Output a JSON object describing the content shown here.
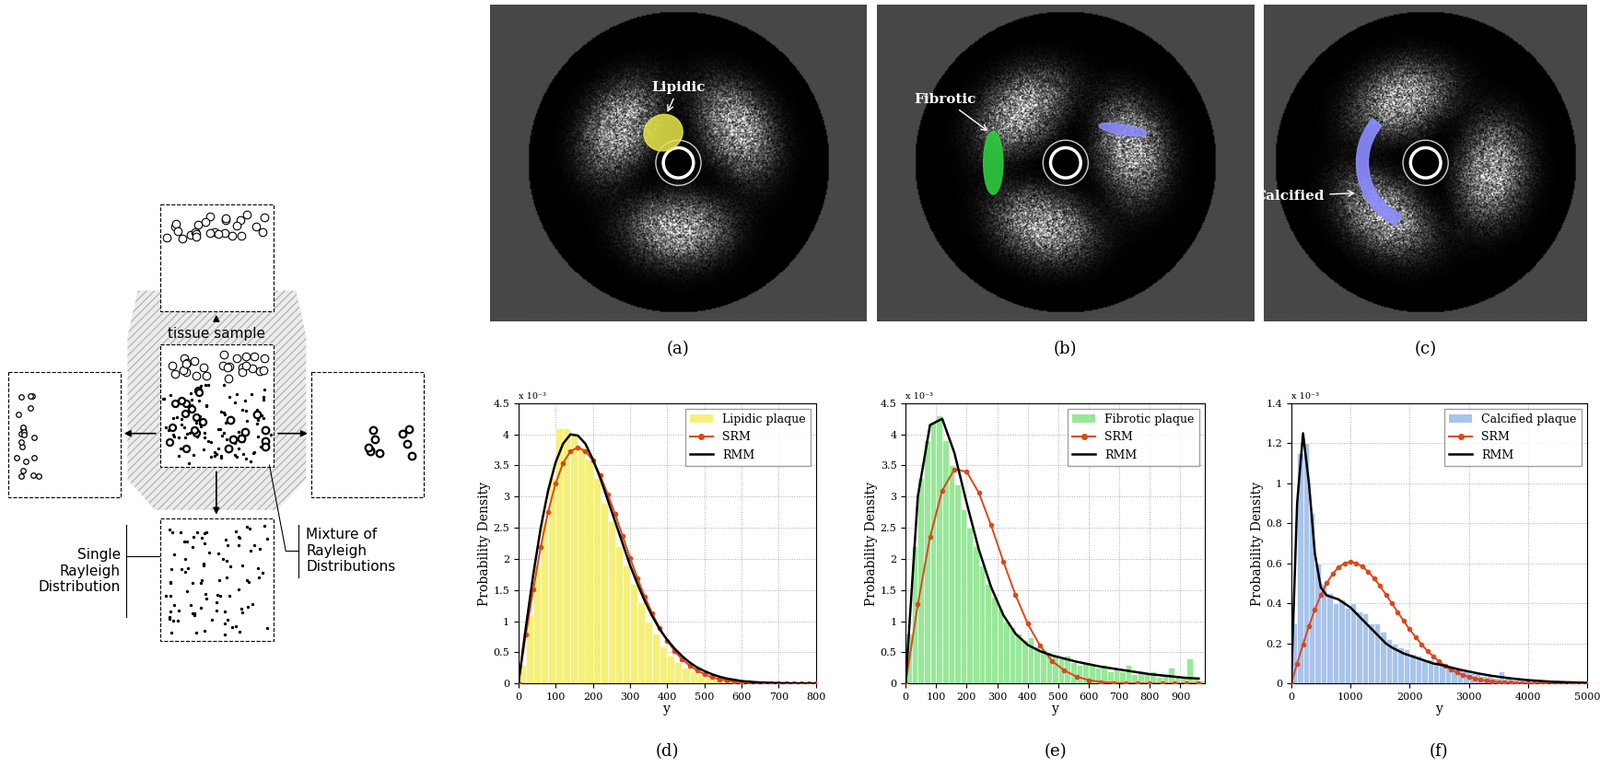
{
  "diagram": {
    "center_label": "tissue sample",
    "mixture_label": [
      "Mixture of",
      "Rayleigh",
      "Distributions"
    ],
    "single_label": [
      "Single",
      "Rayleigh",
      "Distribution"
    ]
  },
  "images": [
    {
      "panel_label": "(a)",
      "annotation": "Lipidic",
      "color": "#e8e84a"
    },
    {
      "panel_label": "(b)",
      "annotation": "Fibrotic",
      "color": "#2ecc40"
    },
    {
      "panel_label": "(c)",
      "annotation": "Calcified",
      "color": "#8c8cff"
    }
  ],
  "chart_data": [
    {
      "type": "histogram",
      "panel_label": "(d)",
      "xlabel": "y",
      "ylabel": "Probability Density",
      "y_multiplier": "x 10⁻³",
      "legend": "upper right",
      "grid": true,
      "xlim": [
        0,
        800
      ],
      "xticks": [
        0,
        100,
        200,
        300,
        400,
        500,
        600,
        700,
        800
      ],
      "ylim": [
        0,
        4.5
      ],
      "yticks": [
        0,
        0.5,
        1,
        1.5,
        2,
        2.5,
        3,
        3.5,
        4,
        4.5
      ],
      "histogram": {
        "name": "Lipidic plaque",
        "color": "#f5f07a",
        "bins": [
          0,
          20,
          40,
          60,
          80,
          100,
          120,
          140,
          160,
          180,
          200,
          220,
          240,
          260,
          280,
          300,
          320,
          340,
          360,
          380,
          400,
          420,
          440,
          460,
          480,
          500,
          520,
          540,
          560,
          580,
          600,
          620,
          640,
          660,
          680,
          700,
          720,
          740,
          760,
          780,
          800
        ],
        "counts": [
          0.3,
          1.1,
          1.9,
          2.6,
          3.3,
          4.1,
          4.1,
          4.0,
          3.8,
          3.6,
          3.3,
          2.9,
          2.6,
          2.2,
          1.9,
          1.6,
          1.3,
          1.0,
          0.8,
          0.6,
          0.45,
          0.35,
          0.25,
          0.2,
          0.15,
          0.1,
          0.08,
          0.1,
          0.05,
          0.03,
          0,
          0,
          0,
          0,
          0,
          0,
          0,
          0,
          0,
          0
        ]
      },
      "x": [
        0,
        20,
        40,
        60,
        80,
        100,
        120,
        140,
        160,
        180,
        200,
        220,
        240,
        260,
        280,
        300,
        320,
        340,
        360,
        380,
        400,
        420,
        440,
        460,
        480,
        500,
        520,
        540,
        560,
        580,
        600,
        620,
        640,
        660,
        680,
        700,
        720,
        740,
        760,
        780,
        800
      ],
      "series": [
        {
          "name": "SRM",
          "color": "#d9481c",
          "marker": "circle",
          "values": [
            0,
            0.78,
            1.51,
            2.19,
            2.76,
            3.21,
            3.54,
            3.73,
            3.79,
            3.73,
            3.58,
            3.34,
            3.04,
            2.72,
            2.37,
            2.02,
            1.69,
            1.39,
            1.12,
            0.89,
            0.69,
            0.52,
            0.39,
            0.29,
            0.21,
            0.15,
            0.1,
            0.07,
            0.05,
            0.03,
            0.02,
            0.013,
            0.008,
            0.005,
            0.003,
            0.002,
            0.001,
            0.001,
            0,
            0,
            0
          ]
        },
        {
          "name": "RMM",
          "color": "#000000",
          "values": [
            0,
            0.9,
            1.75,
            2.5,
            3.1,
            3.55,
            3.85,
            4.0,
            3.98,
            3.85,
            3.6,
            3.3,
            2.95,
            2.6,
            2.25,
            1.9,
            1.6,
            1.32,
            1.08,
            0.87,
            0.7,
            0.56,
            0.44,
            0.34,
            0.26,
            0.2,
            0.15,
            0.11,
            0.08,
            0.06,
            0.04,
            0.03,
            0.02,
            0.015,
            0.01,
            0.007,
            0.005,
            0.003,
            0.002,
            0.001,
            0
          ]
        }
      ]
    },
    {
      "type": "histogram",
      "panel_label": "(e)",
      "xlabel": "y",
      "ylabel": "Probability Density",
      "y_multiplier": "x 10⁻³",
      "legend": "upper right",
      "grid": true,
      "xlim": [
        0,
        980
      ],
      "xticks": [
        0,
        100,
        200,
        300,
        400,
        500,
        600,
        700,
        800,
        900
      ],
      "ylim": [
        0,
        4.5
      ],
      "yticks": [
        0,
        0.5,
        1,
        1.5,
        2,
        2.5,
        3,
        3.5,
        4,
        4.5
      ],
      "histogram": {
        "name": "Fibrotic plaque",
        "color": "#98e898",
        "bins": [
          0,
          20,
          40,
          60,
          80,
          100,
          120,
          140,
          160,
          180,
          200,
          220,
          240,
          260,
          280,
          300,
          320,
          340,
          360,
          380,
          400,
          420,
          440,
          460,
          480,
          500,
          520,
          540,
          560,
          580,
          600,
          620,
          640,
          660,
          680,
          700,
          720,
          740,
          760,
          780,
          800,
          820,
          840,
          860,
          880,
          900,
          920,
          940,
          960,
          980
        ],
        "counts": [
          0.8,
          2.2,
          3.3,
          3.9,
          4.2,
          4.3,
          3.9,
          3.5,
          3.2,
          2.8,
          2.5,
          2.2,
          1.9,
          1.6,
          1.4,
          1.2,
          1.0,
          0.9,
          0.8,
          0.7,
          0.75,
          0.6,
          0.55,
          0.5,
          0.45,
          0.4,
          0.45,
          0.35,
          0.3,
          0.35,
          0.3,
          0.25,
          0.3,
          0.2,
          0.25,
          0.2,
          0.3,
          0.15,
          0.2,
          0.15,
          0.2,
          0.1,
          0.15,
          0.25,
          0.1,
          0.1,
          0.4,
          0.1,
          0.05
        ]
      },
      "x": [
        0,
        40,
        80,
        120,
        160,
        200,
        240,
        280,
        320,
        360,
        400,
        440,
        480,
        520,
        560,
        600,
        640,
        680,
        720,
        760,
        800,
        840,
        880,
        920,
        960
      ],
      "series": [
        {
          "name": "SRM",
          "color": "#d9481c",
          "marker": "circle",
          "values": [
            0,
            1.27,
            2.35,
            3.1,
            3.44,
            3.4,
            3.06,
            2.54,
            1.96,
            1.42,
            0.96,
            0.61,
            0.36,
            0.21,
            0.11,
            0.055,
            0.025,
            0.011,
            0.005,
            0.002,
            0.001,
            0,
            0,
            0,
            0
          ]
        },
        {
          "name": "RMM",
          "color": "#000000",
          "values": [
            0,
            3.0,
            4.15,
            4.25,
            3.7,
            2.9,
            2.15,
            1.55,
            1.1,
            0.8,
            0.62,
            0.52,
            0.45,
            0.4,
            0.35,
            0.31,
            0.27,
            0.24,
            0.21,
            0.18,
            0.15,
            0.13,
            0.11,
            0.09,
            0.08
          ]
        }
      ]
    },
    {
      "type": "histogram",
      "panel_label": "(f)",
      "xlabel": "y",
      "ylabel": "Probability Density",
      "y_multiplier": "x 10⁻³",
      "legend": "upper right",
      "grid": true,
      "xlim": [
        0,
        5000
      ],
      "xticks": [
        0,
        1000,
        2000,
        3000,
        4000,
        5000
      ],
      "ylim": [
        0,
        1.4
      ],
      "yticks": [
        0,
        0.2,
        0.4,
        0.6,
        0.8,
        1,
        1.2,
        1.4
      ],
      "histogram": {
        "name": "Calcified plaque",
        "color": "#a9c4ea",
        "bins": [
          0,
          100,
          200,
          300,
          400,
          500,
          600,
          700,
          800,
          900,
          1000,
          1100,
          1200,
          1300,
          1400,
          1500,
          1600,
          1700,
          1800,
          1900,
          2000,
          2100,
          2200,
          2300,
          2400,
          2500,
          2600,
          2700,
          2800,
          2900,
          3000,
          3100,
          3200,
          3300,
          3400,
          3500,
          3600,
          3700,
          3800,
          3900,
          4000,
          4100,
          4200,
          4300,
          4400,
          4500,
          4600,
          4700,
          4800,
          4900,
          5000
        ],
        "counts": [
          0.3,
          1.15,
          1.2,
          0.85,
          0.6,
          0.5,
          0.45,
          0.4,
          0.42,
          0.38,
          0.4,
          0.36,
          0.35,
          0.3,
          0.3,
          0.26,
          0.22,
          0.2,
          0.18,
          0.17,
          0.15,
          0.14,
          0.12,
          0.12,
          0.1,
          0.1,
          0.08,
          0.08,
          0.07,
          0.06,
          0.05,
          0.05,
          0.04,
          0.04,
          0.03,
          0.06,
          0.03,
          0.02,
          0.02,
          0.02,
          0.01,
          0.02,
          0.01,
          0.01,
          0.01,
          0.01,
          0,
          0.01,
          0,
          0
        ]
      },
      "x": [
        0,
        100,
        200,
        300,
        400,
        500,
        600,
        700,
        800,
        900,
        1000,
        1100,
        1200,
        1300,
        1400,
        1500,
        1600,
        1700,
        1800,
        1900,
        2000,
        2100,
        2200,
        2300,
        2400,
        2500,
        2600,
        2700,
        2800,
        2900,
        3000,
        3100,
        3200,
        3300,
        3400,
        3500,
        3600,
        3700,
        3800,
        3900,
        4000,
        4100,
        4200,
        4300,
        4400,
        4500,
        4600,
        4700,
        4800,
        4900,
        5000
      ],
      "series": [
        {
          "name": "SRM",
          "color": "#d9481c",
          "marker": "circle",
          "values": [
            0,
            0.0995,
            0.196,
            0.287,
            0.369,
            0.441,
            0.501,
            0.548,
            0.581,
            0.6,
            0.607,
            0.601,
            0.584,
            0.559,
            0.525,
            0.487,
            0.444,
            0.401,
            0.356,
            0.312,
            0.271,
            0.232,
            0.196,
            0.163,
            0.135,
            0.11,
            0.088,
            0.07,
            0.055,
            0.043,
            0.033,
            0.025,
            0.019,
            0.014,
            0.011,
            0.008,
            0.006,
            0.004,
            0.003,
            0.002,
            0.001,
            0.001,
            0,
            0,
            0,
            0,
            0,
            0,
            0,
            0,
            0
          ]
        },
        {
          "name": "RMM",
          "color": "#000000",
          "values": [
            0,
            0.9,
            1.25,
            1.0,
            0.65,
            0.48,
            0.44,
            0.43,
            0.42,
            0.4,
            0.38,
            0.35,
            0.32,
            0.29,
            0.26,
            0.23,
            0.2,
            0.18,
            0.165,
            0.15,
            0.14,
            0.13,
            0.12,
            0.11,
            0.1,
            0.095,
            0.088,
            0.08,
            0.073,
            0.066,
            0.06,
            0.054,
            0.048,
            0.043,
            0.038,
            0.034,
            0.03,
            0.026,
            0.023,
            0.02,
            0.017,
            0.015,
            0.013,
            0.011,
            0.009,
            0.008,
            0.007,
            0.006,
            0.005,
            0.004,
            0.003
          ]
        }
      ]
    }
  ]
}
